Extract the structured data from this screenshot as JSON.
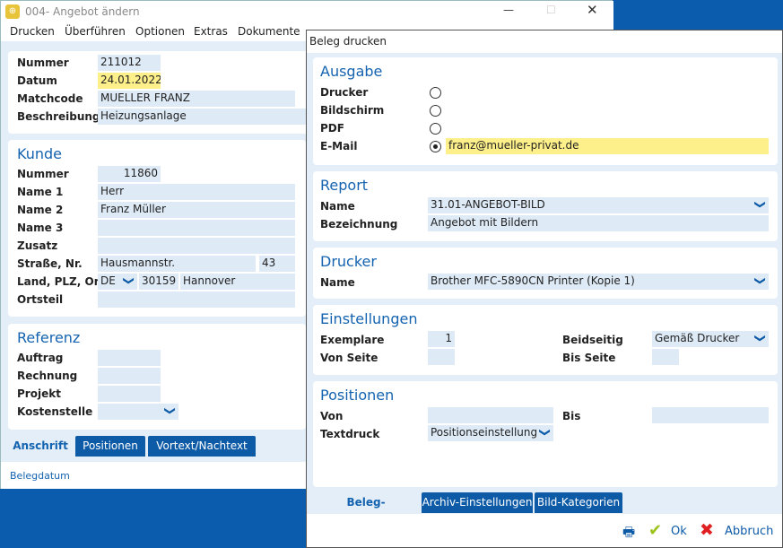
{
  "main": {
    "title": "004- Angebot ändern",
    "menu": [
      "Drucken",
      "Überführen",
      "Optionen",
      "Extras",
      "Dokumente"
    ],
    "header": {
      "nummer_label": "Nummer",
      "nummer": "211012",
      "datum_label": "Datum",
      "datum": "24.01.2022",
      "matchcode_label": "Matchcode",
      "matchcode": "MUELLER FRANZ",
      "beschreibung_label": "Beschreibung",
      "beschreibung": "Heizungsanlage"
    },
    "kunde": {
      "title": "Kunde",
      "nummer_label": "Nummer",
      "nummer": "11860",
      "name1_label": "Name 1",
      "name1": "Herr",
      "name2_label": "Name 2",
      "name2": "Franz Müller",
      "name3_label": "Name 3",
      "zusatz_label": "Zusatz",
      "strasse_label": "Straße, Nr.",
      "strasse": "Hausmannstr.",
      "hausnr": "43",
      "land_label": "Land, PLZ, Ort",
      "land": "DE",
      "plz": "30159",
      "ort": "Hannover",
      "ortsteil_label": "Ortsteil"
    },
    "referenz": {
      "title": "Referenz",
      "auftrag_label": "Auftrag",
      "rechnung_label": "Rechnung",
      "projekt_label": "Projekt",
      "kostenstelle_label": "Kostenstelle"
    },
    "tabs": [
      "Anschrift",
      "Positionen",
      "Vortext/Nachtext"
    ],
    "footer": "Belegdatum"
  },
  "dialog": {
    "title": "Beleg drucken",
    "ausgabe": {
      "title": "Ausgabe",
      "options": [
        "Drucker",
        "Bildschirm",
        "PDF",
        "E-Mail"
      ],
      "selected": "E-Mail",
      "email": "franz@mueller-privat.de"
    },
    "report": {
      "title": "Report",
      "name_label": "Name",
      "name": "31.01-ANGEBOT-BILD",
      "bez_label": "Bezeichnung",
      "bez": "Angebot mit Bildern"
    },
    "drucker": {
      "title": "Drucker",
      "name_label": "Name",
      "name": "Brother MFC-5890CN Printer (Kopie 1)"
    },
    "einstellungen": {
      "title": "Einstellungen",
      "exemplare_label": "Exemplare",
      "exemplare": "1",
      "von_label": "Von Seite",
      "beidseitig_label": "Beidseitig",
      "beidseitig": "Gemäß Drucker",
      "bis_label": "Bis Seite"
    },
    "positionen": {
      "title": "Positionen",
      "von_label": "Von",
      "bis_label": "Bis",
      "textdruck_label": "Textdruck",
      "textdruck": "Positionseinstellung"
    },
    "tabs": [
      "Beleg-Einstellungen",
      "Archiv-Einstellungen",
      "Bild-Kategorien"
    ],
    "ok": "Ok",
    "abbruch": "Abbruch"
  }
}
